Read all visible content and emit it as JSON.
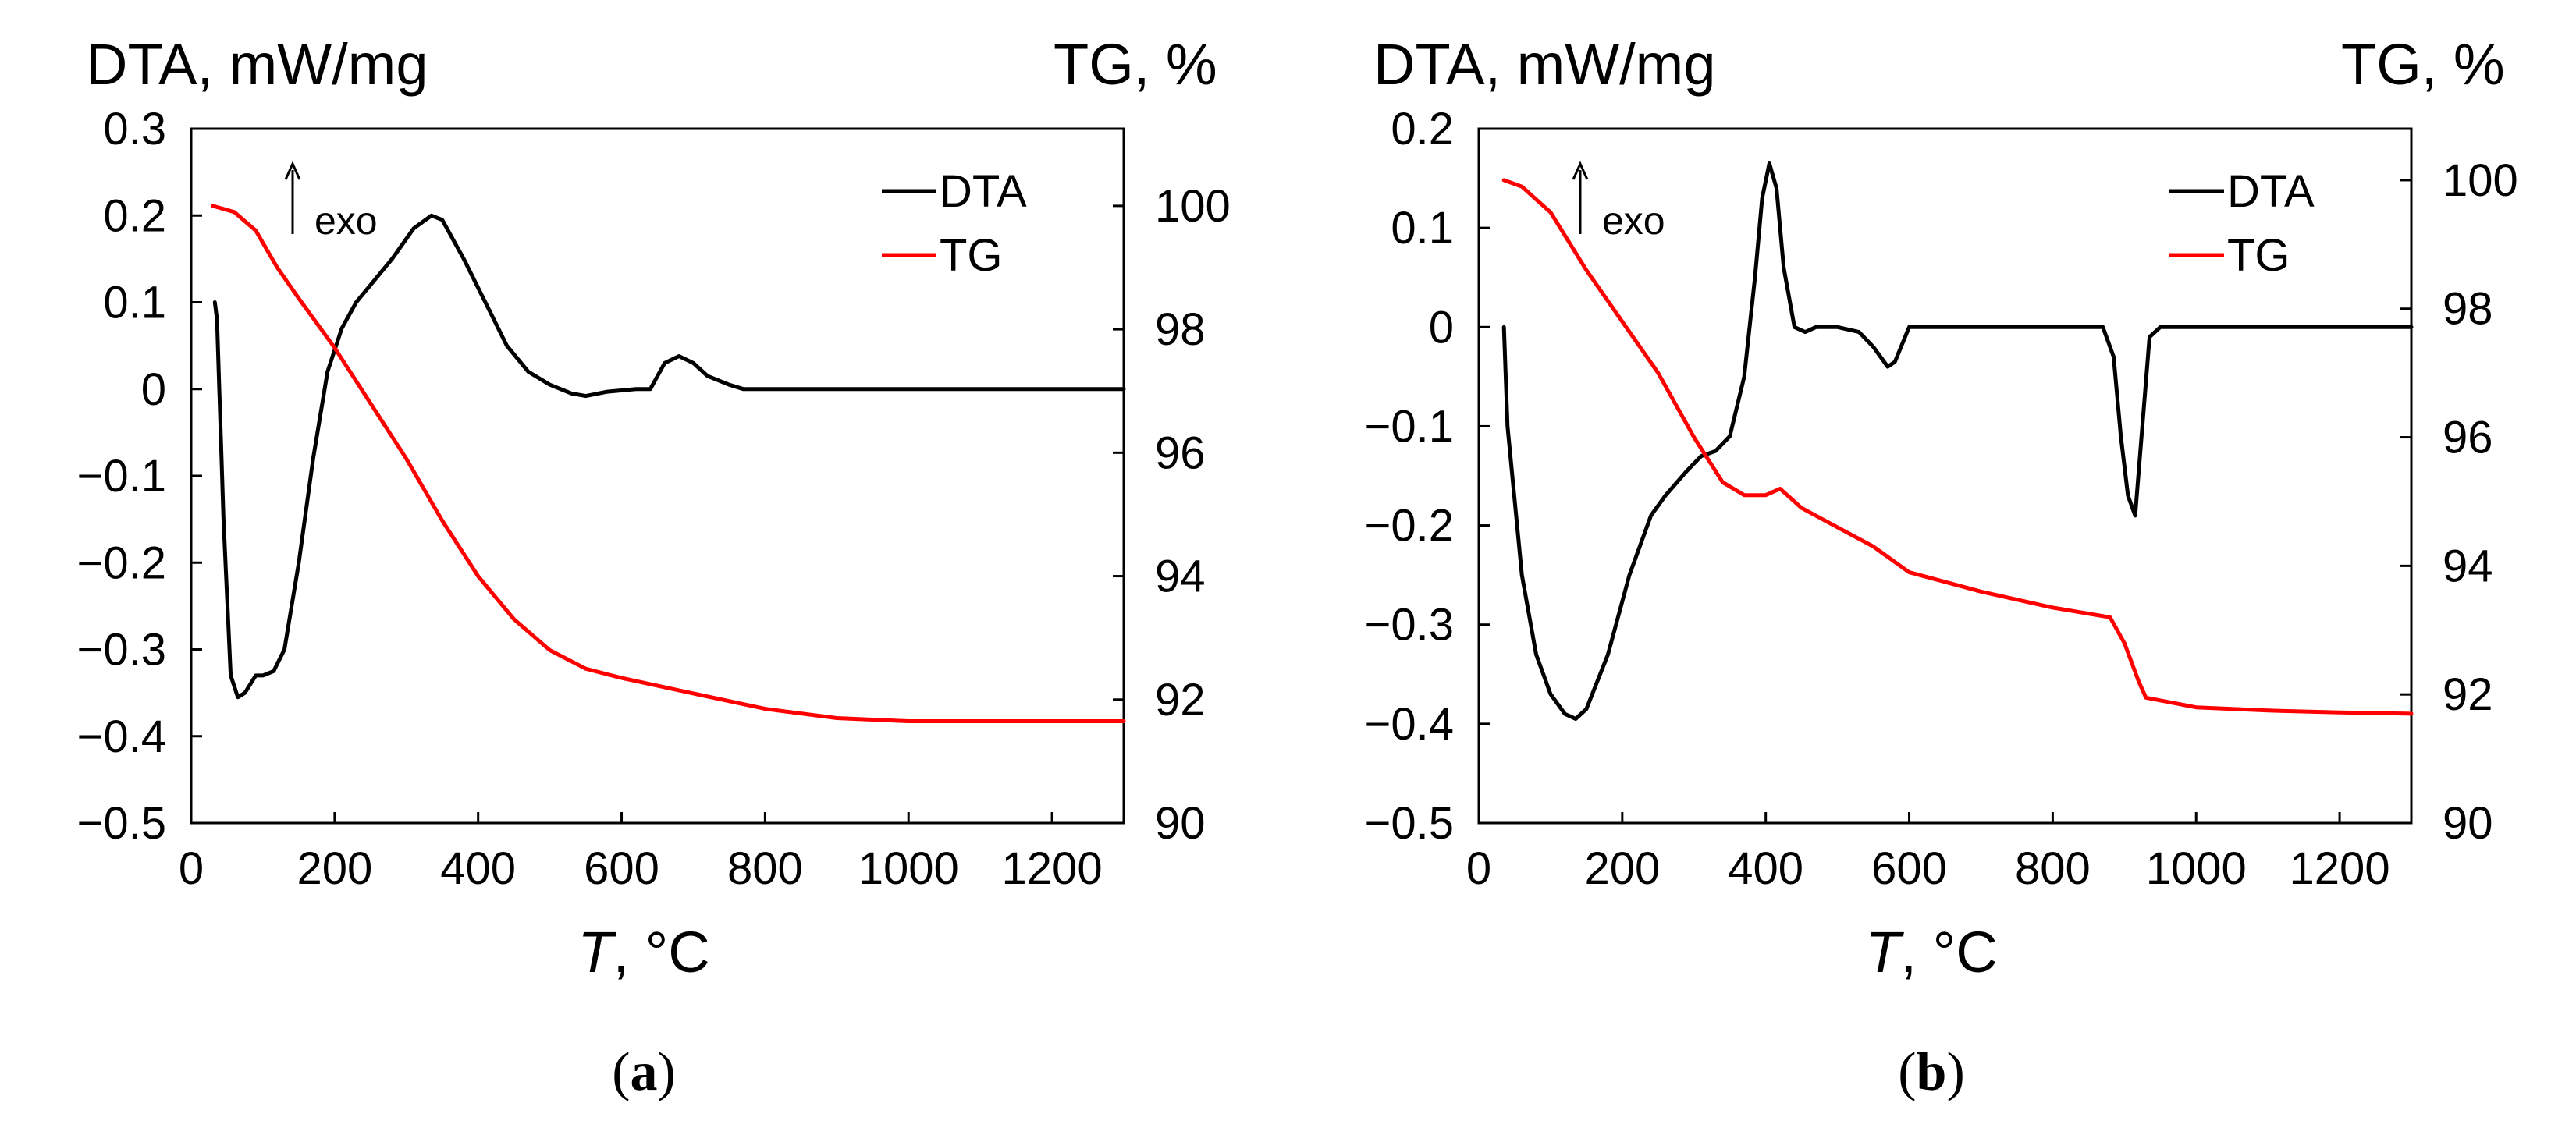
{
  "chart_data": [
    {
      "type": "line",
      "panel": "a",
      "caption_letter": "a",
      "left_axis_label": "DTA, mW/mg",
      "right_axis_label": "TG, %",
      "xlabel_symbol": "T",
      "xlabel_unit": ", °C",
      "xlim": [
        0,
        1300
      ],
      "ylim_left": [
        -0.5,
        0.3
      ],
      "ylim_right": [
        90,
        101.25
      ],
      "x_ticks": [
        "0",
        "200",
        "400",
        "600",
        "800",
        "1000",
        "1200"
      ],
      "y_left_ticks": [
        "−0.5",
        "−0.4",
        "−0.3",
        "−0.2",
        "−0.1",
        "0",
        "0.1",
        "0.2",
        "0.3"
      ],
      "y_right_ticks": [
        "90",
        "92",
        "94",
        "96",
        "98",
        "100"
      ],
      "annotation": "exo",
      "legend": [
        "DTA",
        "TG"
      ],
      "colors": {
        "DTA": "#000000",
        "TG": "#ff0000"
      },
      "series": [
        {
          "name": "DTA",
          "axis": "left",
          "x": [
            33,
            36,
            45,
            55,
            65,
            75,
            90,
            100,
            115,
            130,
            150,
            170,
            190,
            210,
            230,
            250,
            280,
            310,
            335,
            350,
            380,
            410,
            440,
            470,
            500,
            530,
            550,
            580,
            620,
            640,
            660,
            680,
            700,
            720,
            750,
            770,
            800,
            850,
            900,
            1000,
            1100,
            1200,
            1300
          ],
          "values": [
            0.1,
            0.08,
            -0.15,
            -0.33,
            -0.355,
            -0.35,
            -0.33,
            -0.33,
            -0.325,
            -0.3,
            -0.2,
            -0.08,
            0.02,
            0.07,
            0.1,
            0.12,
            0.15,
            0.185,
            0.2,
            0.195,
            0.15,
            0.1,
            0.05,
            0.02,
            0.005,
            -0.005,
            -0.008,
            -0.003,
            0.0,
            0.0,
            0.03,
            0.038,
            0.03,
            0.015,
            0.005,
            0.0,
            0.0,
            0.0,
            0.0,
            0.0,
            0.0,
            0.0,
            0.0
          ]
        },
        {
          "name": "TG",
          "axis": "right",
          "x": [
            30,
            60,
            90,
            120,
            150,
            200,
            250,
            300,
            350,
            400,
            450,
            500,
            550,
            600,
            700,
            800,
            900,
            1000,
            1100,
            1200,
            1300
          ],
          "values": [
            100,
            99.9,
            99.6,
            99.0,
            98.5,
            97.7,
            96.8,
            95.9,
            94.9,
            94.0,
            93.3,
            92.8,
            92.5,
            92.35,
            92.1,
            91.85,
            91.7,
            91.65,
            91.65,
            91.65,
            91.65
          ]
        }
      ]
    },
    {
      "type": "line",
      "panel": "b",
      "caption_letter": "b",
      "left_axis_label": "DTA, mW/mg",
      "right_axis_label": "TG, %",
      "xlabel_symbol": "T",
      "xlabel_unit": ", °C",
      "xlim": [
        0,
        1300
      ],
      "ylim_left": [
        -0.5,
        0.2
      ],
      "ylim_right": [
        90,
        100.8
      ],
      "x_ticks": [
        "0",
        "200",
        "400",
        "600",
        "800",
        "1000",
        "1200"
      ],
      "y_left_ticks": [
        "−0.5",
        "−0.4",
        "−0.3",
        "−0.2",
        "−0.1",
        "0",
        "0.1",
        "0.2"
      ],
      "y_right_ticks": [
        "90",
        "92",
        "94",
        "96",
        "98",
        "100"
      ],
      "annotation": "exo",
      "legend": [
        "DTA",
        "TG"
      ],
      "colors": {
        "DTA": "#000000",
        "TG": "#ff0000"
      },
      "series": [
        {
          "name": "DTA",
          "axis": "left",
          "x": [
            35,
            40,
            60,
            80,
            100,
            120,
            135,
            150,
            180,
            210,
            240,
            260,
            290,
            310,
            330,
            350,
            370,
            385,
            395,
            405,
            415,
            425,
            440,
            455,
            470,
            500,
            530,
            550,
            570,
            580,
            600,
            700,
            800,
            870,
            885,
            895,
            905,
            915,
            925,
            935,
            950,
            1000,
            1100,
            1200,
            1300
          ],
          "values": [
            0.0,
            -0.1,
            -0.25,
            -0.33,
            -0.37,
            -0.39,
            -0.395,
            -0.385,
            -0.33,
            -0.25,
            -0.19,
            -0.17,
            -0.145,
            -0.13,
            -0.125,
            -0.11,
            -0.05,
            0.05,
            0.13,
            0.165,
            0.14,
            0.06,
            0.0,
            -0.005,
            0.0,
            0.0,
            -0.005,
            -0.02,
            -0.04,
            -0.035,
            0.0,
            0.0,
            0.0,
            0.0,
            -0.03,
            -0.11,
            -0.17,
            -0.19,
            -0.1,
            -0.01,
            0.0,
            0.0,
            0.0,
            0.0,
            0.0
          ]
        },
        {
          "name": "TG",
          "axis": "right",
          "x": [
            35,
            60,
            100,
            150,
            200,
            250,
            300,
            340,
            370,
            400,
            420,
            450,
            500,
            550,
            600,
            700,
            800,
            880,
            900,
            920,
            930,
            1000,
            1100,
            1200,
            1300
          ],
          "values": [
            100,
            99.9,
            99.5,
            98.6,
            97.8,
            97.0,
            96.0,
            95.3,
            95.1,
            95.1,
            95.2,
            94.9,
            94.6,
            94.3,
            93.9,
            93.6,
            93.35,
            93.2,
            92.8,
            92.2,
            91.95,
            91.8,
            91.75,
            91.72,
            91.7
          ]
        }
      ]
    }
  ]
}
